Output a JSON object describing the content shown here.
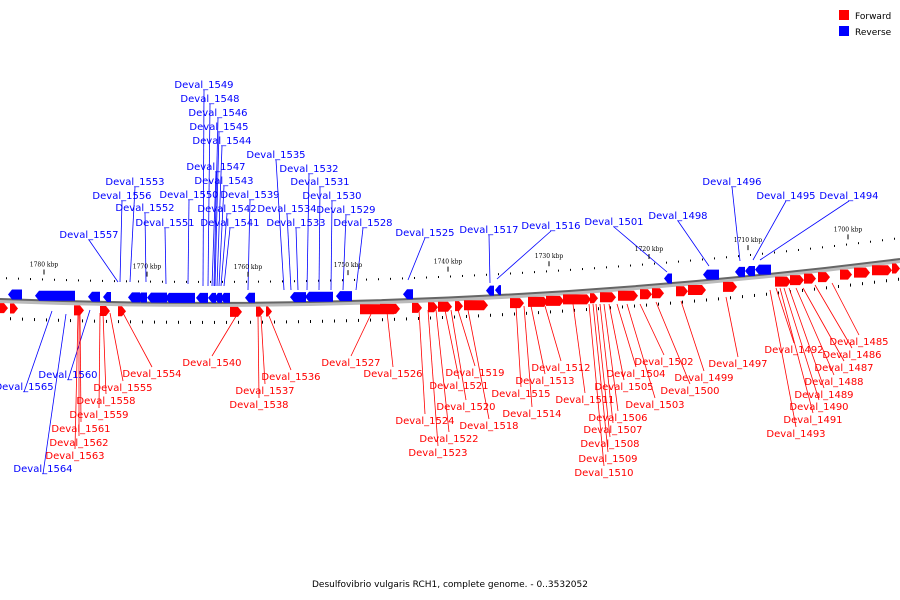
{
  "legend": {
    "forward_label": "Forward",
    "reverse_label": "Reverse",
    "forward_color": "#ff0000",
    "reverse_color": "#0000ff"
  },
  "caption": "Desulfovibrio vulgaris RCH1, complete genome. - 0..3532052",
  "scale": [
    {
      "label": "1780 kbp"
    },
    {
      "label": "1770 kbp"
    },
    {
      "label": "1760 kbp"
    },
    {
      "label": "1750 kbp"
    },
    {
      "label": "1740 kbp"
    },
    {
      "label": "1730 kbp"
    },
    {
      "label": "1720 kbp"
    },
    {
      "label": "1710 kbp"
    },
    {
      "label": "1700 kbp"
    }
  ],
  "reverse_genes": [
    "Deval_1565",
    "Deval_1564",
    "Deval_1560",
    "Deval_1557",
    "Deval_1556",
    "Deval_1553",
    "Deval_1552",
    "Deval_1551",
    "Deval_1550",
    "Deval_1549",
    "Deval_1548",
    "Deval_1547",
    "Deval_1546",
    "Deval_1545",
    "Deval_1544",
    "Deval_1543",
    "Deval_1542",
    "Deval_1541",
    "Deval_1539",
    "Deval_1535",
    "Deval_1534",
    "Deval_1533",
    "Deval_1532",
    "Deval_1531",
    "Deval_1530",
    "Deval_1529",
    "Deval_1528",
    "Deval_1525",
    "Deval_1517",
    "Deval_1516",
    "Deval_1501",
    "Deval_1498",
    "Deval_1496",
    "Deval_1495",
    "Deval_1494"
  ],
  "forward_genes": [
    "Deval_1563",
    "Deval_1562",
    "Deval_1561",
    "Deval_1559",
    "Deval_1558",
    "Deval_1555",
    "Deval_1554",
    "Deval_1540",
    "Deval_1538",
    "Deval_1537",
    "Deval_1536",
    "Deval_1527",
    "Deval_1526",
    "Deval_1524",
    "Deval_1523",
    "Deval_1522",
    "Deval_1521",
    "Deval_1520",
    "Deval_1519",
    "Deval_1518",
    "Deval_1515",
    "Deval_1514",
    "Deval_1513",
    "Deval_1512",
    "Deval_1511",
    "Deval_1510",
    "Deval_1509",
    "Deval_1508",
    "Deval_1507",
    "Deval_1506",
    "Deval_1505",
    "Deval_1504",
    "Deval_1503",
    "Deval_1502",
    "Deval_1500",
    "Deval_1499",
    "Deval_1497",
    "Deval_1493",
    "Deval_1492",
    "Deval_1491",
    "Deval_1490",
    "Deval_1489",
    "Deval_1488",
    "Deval_1487",
    "Deval_1486",
    "Deval_1485"
  ]
}
